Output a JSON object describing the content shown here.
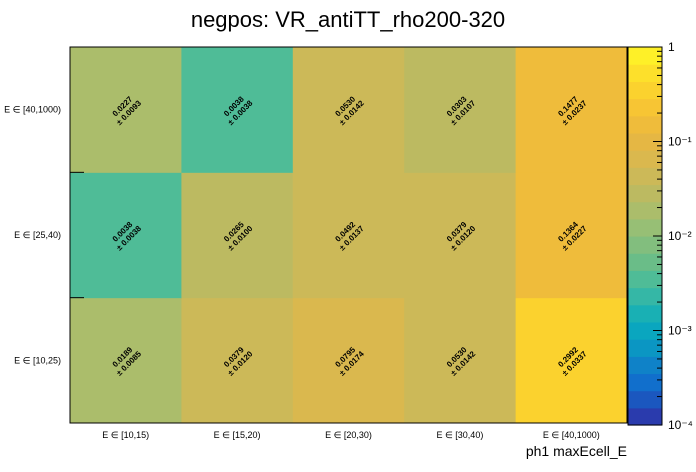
{
  "chart_data": {
    "type": "heatmap",
    "title": "negpos: VR_antiTT_rho200-320",
    "xlabel": "ph1 maxEcell_E",
    "ylabel": "",
    "x_categories": [
      "E ∈ [10,15)",
      "E ∈ [15,20)",
      "E ∈ [20,30)",
      "E ∈ [30,40)",
      "E ∈ [40,1000)"
    ],
    "y_categories": [
      "E ∈ [10,25)",
      "E ∈ [25,40)",
      "E ∈ [40,1000)"
    ],
    "values": [
      [
        0.0189,
        0.0379,
        0.0795,
        0.053,
        0.2992
      ],
      [
        0.0038,
        0.0265,
        0.0492,
        0.0379,
        0.1364
      ],
      [
        0.0227,
        0.0038,
        0.053,
        0.0303,
        0.1477
      ]
    ],
    "value_labels": [
      [
        "0.0189",
        "0.0379",
        "0.0795",
        "0.0530",
        "0.2992"
      ],
      [
        "0.0038",
        "0.0265",
        "0.0492",
        "0.0379",
        "0.1364"
      ],
      [
        "0.0227",
        "0.0038",
        "0.0530",
        "0.0303",
        "0.1477"
      ]
    ],
    "error_labels": [
      [
        "± 0.0085",
        "± 0.0120",
        "± 0.0174",
        "± 0.0142",
        "± 0.0337"
      ],
      [
        "± 0.0038",
        "± 0.0100",
        "± 0.0137",
        "± 0.0120",
        "± 0.0227"
      ],
      [
        "± 0.0093",
        "± 0.0038",
        "± 0.0142",
        "± 0.0107",
        "± 0.0237"
      ]
    ],
    "colorbar": {
      "scale": "log",
      "range": [
        0.0001,
        1
      ],
      "tick_labels": [
        "1",
        "10⁻¹",
        "10⁻²",
        "10⁻³",
        "10⁻⁴"
      ]
    },
    "colors": {
      "palette": [
        "#2a3bad",
        "#1b57bf",
        "#116fcc",
        "#0f82c8",
        "#0b96c3",
        "#0aa6bf",
        "#19b0b4",
        "#35b7a6",
        "#4fbc97",
        "#6abd88",
        "#82be7e",
        "#97bf75",
        "#abbd6b",
        "#bcba61",
        "#ccb958",
        "#dab84e",
        "#e5b744",
        "#efbc3b",
        "#f7c534",
        "#fbd22e",
        "#fde02b",
        "#fef028"
      ]
    }
  }
}
